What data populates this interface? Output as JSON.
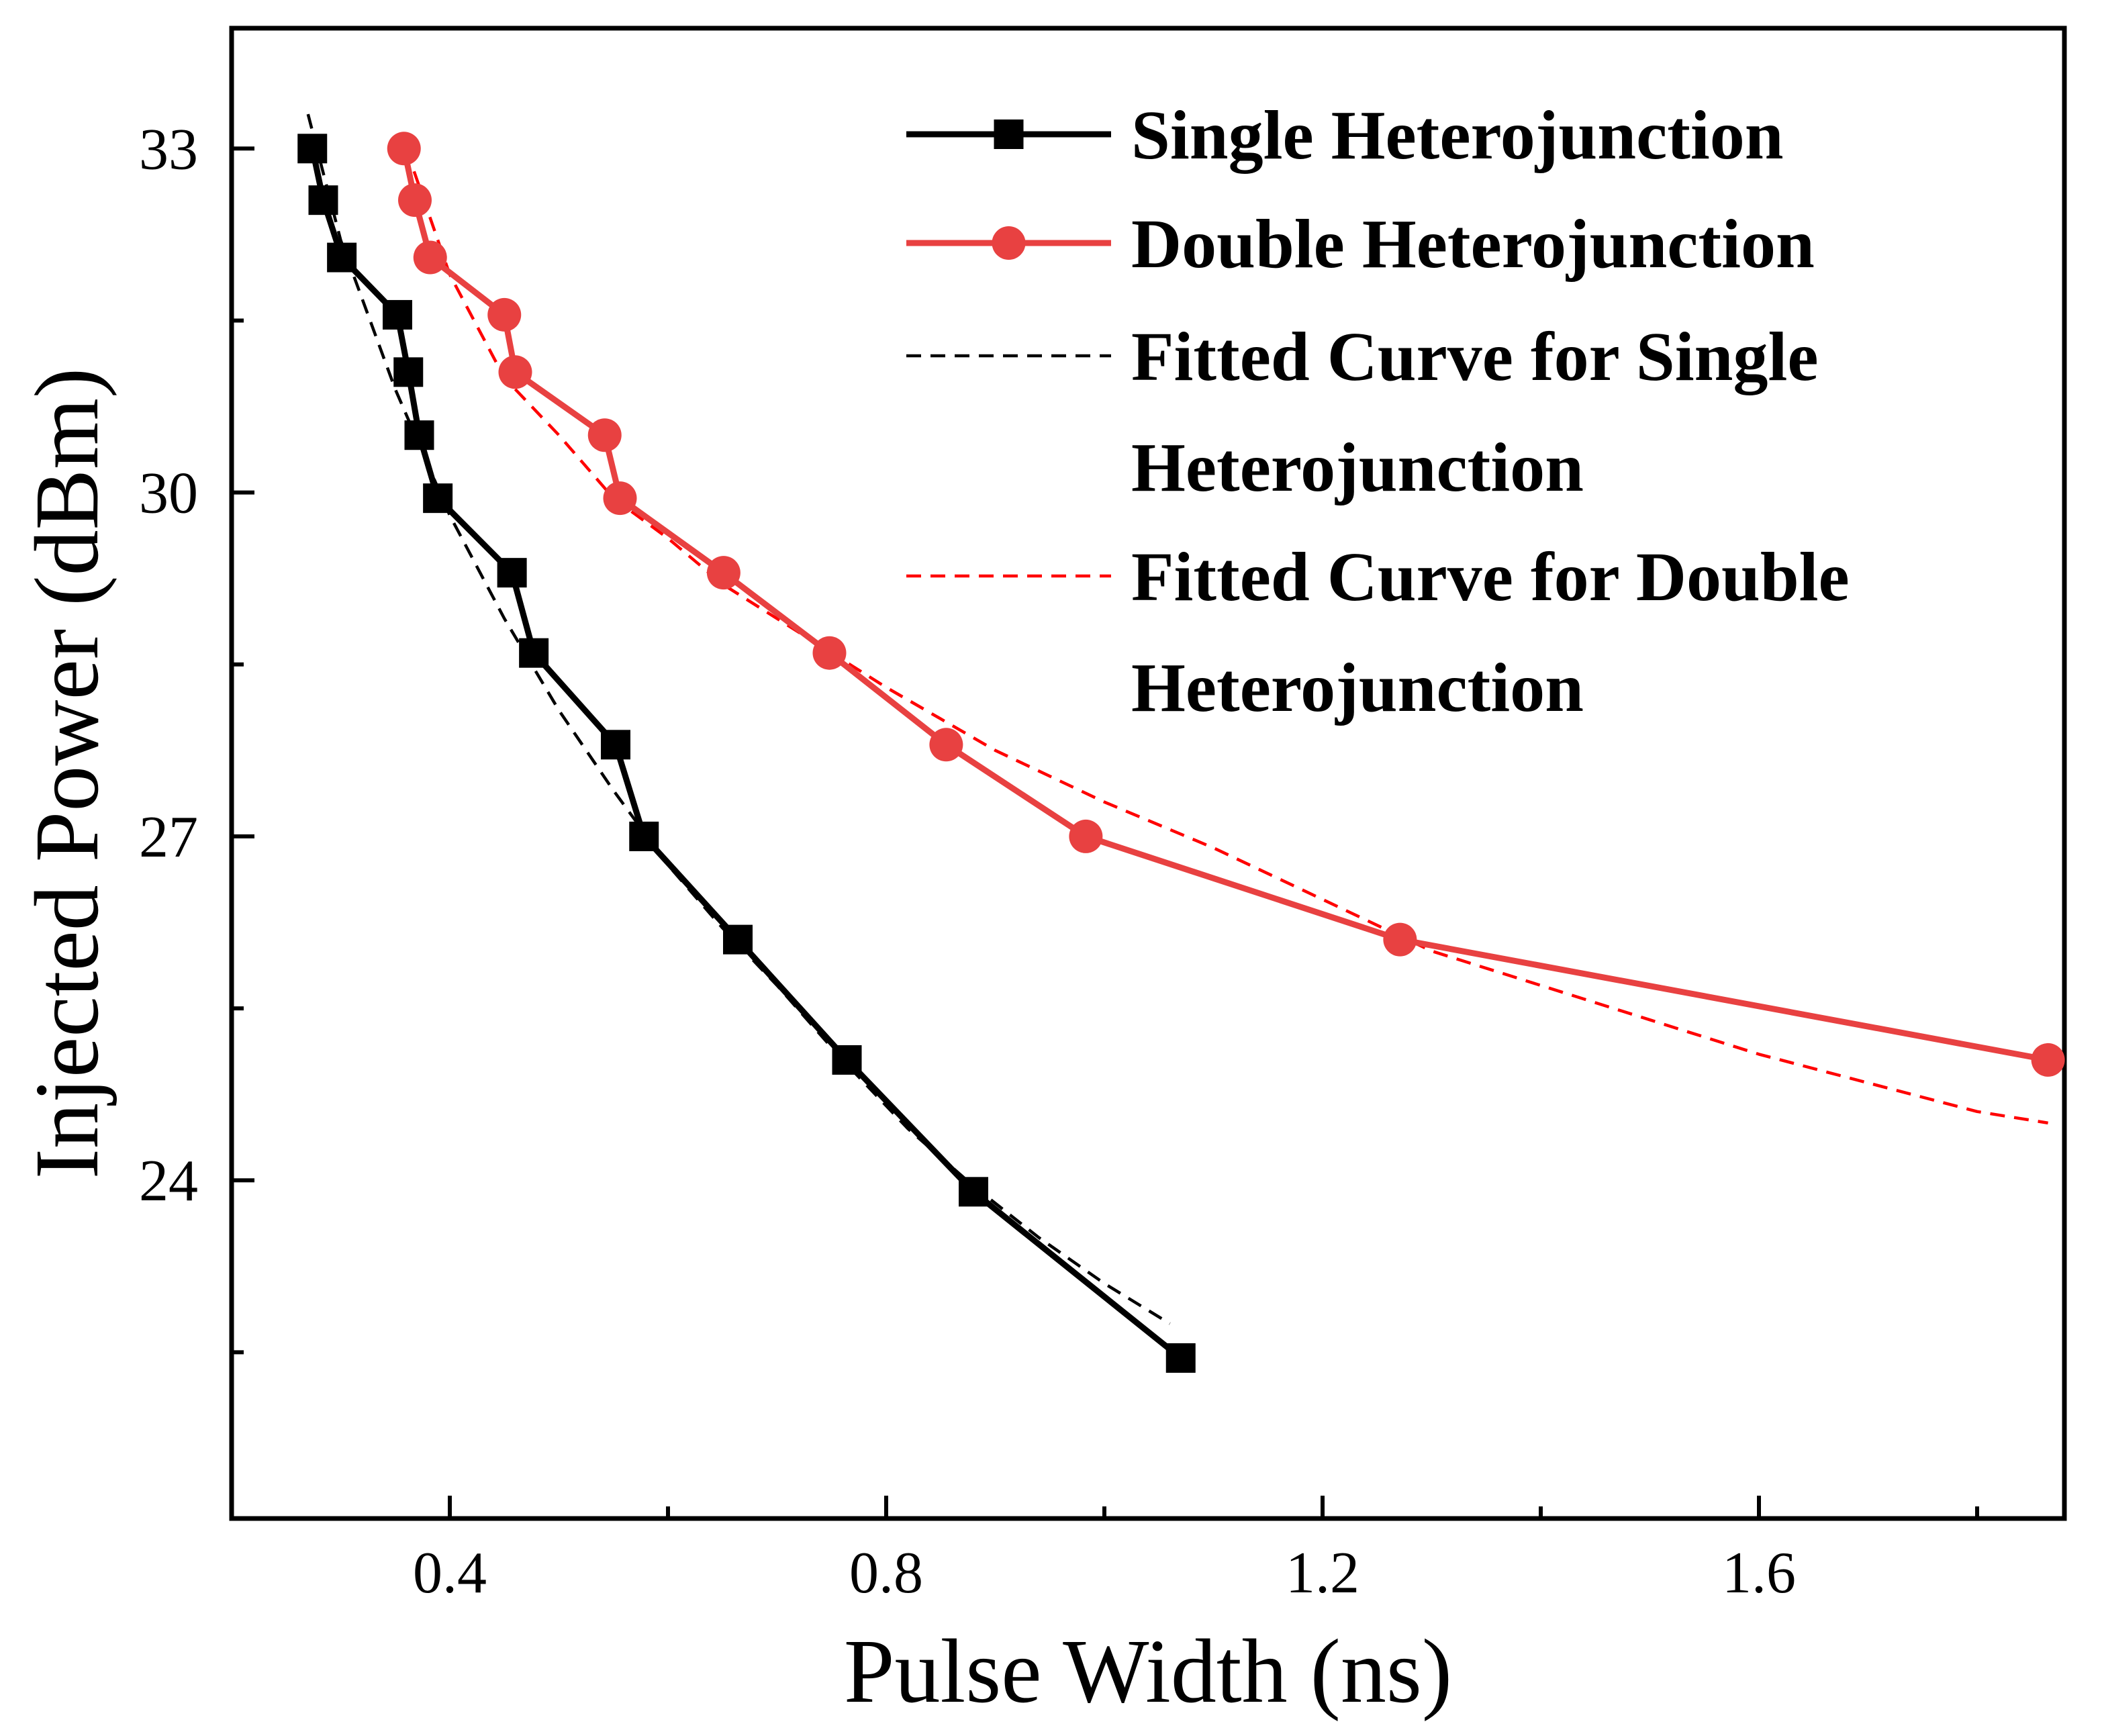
{
  "chart_data": {
    "type": "line",
    "xlabel": "Pulse Width (ns)",
    "ylabel": "Injected Power (dBm)",
    "xlim": [
      0.2,
      1.88
    ],
    "ylim": [
      21.05,
      34.05
    ],
    "x_ticks": [
      0.4,
      0.8,
      1.2,
      1.6
    ],
    "x_tick_labels": [
      "0.4",
      "0.8",
      "1.2",
      "1.6"
    ],
    "x_minor_ticks": [
      0.6,
      1.0,
      1.4,
      1.8
    ],
    "y_ticks": [
      24,
      27,
      30,
      33
    ],
    "y_tick_labels": [
      "24",
      "27",
      "30",
      "33"
    ],
    "y_minor_ticks": [
      22.5,
      25.5,
      28.5,
      31.5
    ],
    "grid": false,
    "legend_position": "top-right",
    "series": [
      {
        "name": "Single Heterojunction",
        "color": "#000000",
        "marker": "square",
        "style": "solid",
        "x": [
          0.274,
          0.284,
          0.301,
          0.352,
          0.362,
          0.372,
          0.389,
          0.457,
          0.477,
          0.552,
          0.578,
          0.664,
          0.764,
          0.88,
          1.07
        ],
        "y": [
          33.0,
          32.55,
          32.05,
          31.55,
          31.05,
          30.5,
          29.95,
          29.3,
          28.6,
          27.8,
          27.0,
          26.1,
          25.05,
          23.9,
          22.45
        ]
      },
      {
        "name": "Double Heterojunction",
        "color": "#e84141",
        "marker": "circle",
        "style": "solid",
        "x": [
          0.358,
          0.368,
          0.382,
          0.45,
          0.46,
          0.542,
          0.556,
          0.651,
          0.748,
          0.855,
          0.983,
          1.271,
          1.865
        ],
        "y": [
          33.0,
          32.55,
          32.05,
          31.55,
          31.05,
          30.5,
          29.95,
          29.3,
          28.6,
          27.8,
          27.0,
          26.1,
          25.05
        ]
      },
      {
        "name": "Fitted Curve for Single Heterojunction",
        "color": "#000000",
        "marker": "none",
        "style": "dashed",
        "x": [
          0.27,
          0.3,
          0.35,
          0.4,
          0.45,
          0.5,
          0.55,
          0.6,
          0.65,
          0.7,
          0.76,
          0.82,
          0.88,
          0.94,
          1.0,
          1.06
        ],
        "y": [
          33.3,
          32.2,
          30.9,
          29.8,
          28.9,
          28.1,
          27.4,
          26.75,
          26.2,
          25.7,
          25.05,
          24.45,
          23.95,
          23.5,
          23.1,
          22.75
        ]
      },
      {
        "name": "Fitted Curve for Double Heterojunction",
        "color": "#ff0000",
        "marker": "none",
        "style": "dashed",
        "x": [
          0.36,
          0.4,
          0.45,
          0.5,
          0.55,
          0.6,
          0.65,
          0.7,
          0.75,
          0.8,
          0.9,
          1.0,
          1.1,
          1.2,
          1.3,
          1.4,
          1.5,
          1.6,
          1.7,
          1.8,
          1.865
        ],
        "y": [
          33.0,
          31.9,
          31.0,
          30.5,
          29.95,
          29.6,
          29.2,
          28.9,
          28.6,
          28.3,
          27.75,
          27.3,
          26.9,
          26.45,
          26.0,
          25.7,
          25.4,
          25.1,
          24.85,
          24.6,
          24.5
        ]
      }
    ]
  }
}
